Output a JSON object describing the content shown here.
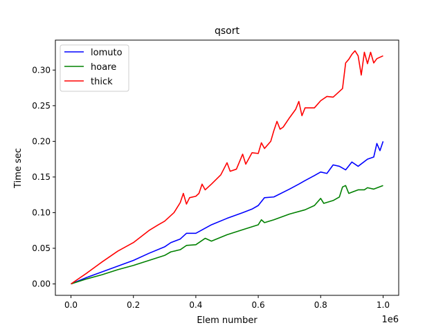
{
  "chart_data": {
    "type": "line",
    "title": "qsort",
    "xlabel": "Elem number",
    "ylabel": "Time sec",
    "x_offset_label": "1e6",
    "xlim": [
      -0.05,
      1.05
    ],
    "ylim": [
      -0.016,
      0.342
    ],
    "xticks": [
      0.0,
      0.2,
      0.4,
      0.6,
      0.8,
      1.0
    ],
    "xtick_labels": [
      "0.0",
      "0.2",
      "0.4",
      "0.6",
      "0.8",
      "1.0"
    ],
    "yticks": [
      0.0,
      0.05,
      0.1,
      0.15,
      0.2,
      0.25,
      0.3
    ],
    "ytick_labels": [
      "0.00",
      "0.05",
      "0.10",
      "0.15",
      "0.20",
      "0.25",
      "0.30"
    ],
    "grid": false,
    "legend_position": "upper-left",
    "series": [
      {
        "name": "lomuto",
        "color": "#0000ff",
        "points": [
          [
            0.0,
            0.0
          ],
          [
            0.05,
            0.009
          ],
          [
            0.1,
            0.017
          ],
          [
            0.15,
            0.025
          ],
          [
            0.2,
            0.033
          ],
          [
            0.25,
            0.043
          ],
          [
            0.3,
            0.052
          ],
          [
            0.32,
            0.058
          ],
          [
            0.35,
            0.063
          ],
          [
            0.37,
            0.071
          ],
          [
            0.4,
            0.071
          ],
          [
            0.45,
            0.083
          ],
          [
            0.5,
            0.092
          ],
          [
            0.55,
            0.1
          ],
          [
            0.58,
            0.105
          ],
          [
            0.6,
            0.11
          ],
          [
            0.62,
            0.121
          ],
          [
            0.65,
            0.122
          ],
          [
            0.7,
            0.133
          ],
          [
            0.73,
            0.14
          ],
          [
            0.75,
            0.145
          ],
          [
            0.78,
            0.152
          ],
          [
            0.8,
            0.157
          ],
          [
            0.82,
            0.155
          ],
          [
            0.84,
            0.167
          ],
          [
            0.86,
            0.165
          ],
          [
            0.88,
            0.16
          ],
          [
            0.9,
            0.171
          ],
          [
            0.92,
            0.165
          ],
          [
            0.95,
            0.175
          ],
          [
            0.97,
            0.178
          ],
          [
            0.98,
            0.197
          ],
          [
            0.99,
            0.187
          ],
          [
            1.0,
            0.2
          ]
        ]
      },
      {
        "name": "hoare",
        "color": "#008000",
        "points": [
          [
            0.0,
            0.0
          ],
          [
            0.05,
            0.007
          ],
          [
            0.1,
            0.013
          ],
          [
            0.15,
            0.02
          ],
          [
            0.2,
            0.026
          ],
          [
            0.25,
            0.033
          ],
          [
            0.3,
            0.04
          ],
          [
            0.32,
            0.045
          ],
          [
            0.35,
            0.048
          ],
          [
            0.37,
            0.054
          ],
          [
            0.4,
            0.055
          ],
          [
            0.43,
            0.064
          ],
          [
            0.45,
            0.06
          ],
          [
            0.5,
            0.069
          ],
          [
            0.55,
            0.076
          ],
          [
            0.6,
            0.083
          ],
          [
            0.61,
            0.09
          ],
          [
            0.62,
            0.086
          ],
          [
            0.65,
            0.09
          ],
          [
            0.7,
            0.098
          ],
          [
            0.75,
            0.104
          ],
          [
            0.78,
            0.11
          ],
          [
            0.8,
            0.12
          ],
          [
            0.81,
            0.113
          ],
          [
            0.84,
            0.117
          ],
          [
            0.86,
            0.122
          ],
          [
            0.87,
            0.136
          ],
          [
            0.88,
            0.138
          ],
          [
            0.89,
            0.127
          ],
          [
            0.92,
            0.132
          ],
          [
            0.94,
            0.132
          ],
          [
            0.95,
            0.135
          ],
          [
            0.97,
            0.133
          ],
          [
            1.0,
            0.138
          ]
        ]
      },
      {
        "name": "thick",
        "color": "#ff0000",
        "points": [
          [
            0.0,
            0.0
          ],
          [
            0.05,
            0.015
          ],
          [
            0.1,
            0.031
          ],
          [
            0.15,
            0.046
          ],
          [
            0.2,
            0.058
          ],
          [
            0.25,
            0.075
          ],
          [
            0.28,
            0.083
          ],
          [
            0.3,
            0.088
          ],
          [
            0.33,
            0.1
          ],
          [
            0.35,
            0.114
          ],
          [
            0.36,
            0.127
          ],
          [
            0.37,
            0.112
          ],
          [
            0.38,
            0.121
          ],
          [
            0.4,
            0.123
          ],
          [
            0.41,
            0.127
          ],
          [
            0.42,
            0.14
          ],
          [
            0.43,
            0.132
          ],
          [
            0.45,
            0.14
          ],
          [
            0.48,
            0.153
          ],
          [
            0.5,
            0.17
          ],
          [
            0.51,
            0.158
          ],
          [
            0.53,
            0.161
          ],
          [
            0.55,
            0.182
          ],
          [
            0.56,
            0.168
          ],
          [
            0.58,
            0.184
          ],
          [
            0.6,
            0.183
          ],
          [
            0.61,
            0.198
          ],
          [
            0.62,
            0.19
          ],
          [
            0.64,
            0.2
          ],
          [
            0.65,
            0.215
          ],
          [
            0.66,
            0.228
          ],
          [
            0.67,
            0.217
          ],
          [
            0.68,
            0.22
          ],
          [
            0.7,
            0.233
          ],
          [
            0.72,
            0.245
          ],
          [
            0.73,
            0.256
          ],
          [
            0.74,
            0.236
          ],
          [
            0.75,
            0.247
          ],
          [
            0.78,
            0.247
          ],
          [
            0.8,
            0.257
          ],
          [
            0.82,
            0.263
          ],
          [
            0.84,
            0.262
          ],
          [
            0.86,
            0.27
          ],
          [
            0.87,
            0.274
          ],
          [
            0.88,
            0.31
          ],
          [
            0.89,
            0.315
          ],
          [
            0.9,
            0.322
          ],
          [
            0.91,
            0.327
          ],
          [
            0.92,
            0.32
          ],
          [
            0.93,
            0.293
          ],
          [
            0.94,
            0.325
          ],
          [
            0.95,
            0.309
          ],
          [
            0.96,
            0.325
          ],
          [
            0.97,
            0.31
          ],
          [
            0.98,
            0.316
          ],
          [
            1.0,
            0.32
          ]
        ]
      }
    ]
  }
}
